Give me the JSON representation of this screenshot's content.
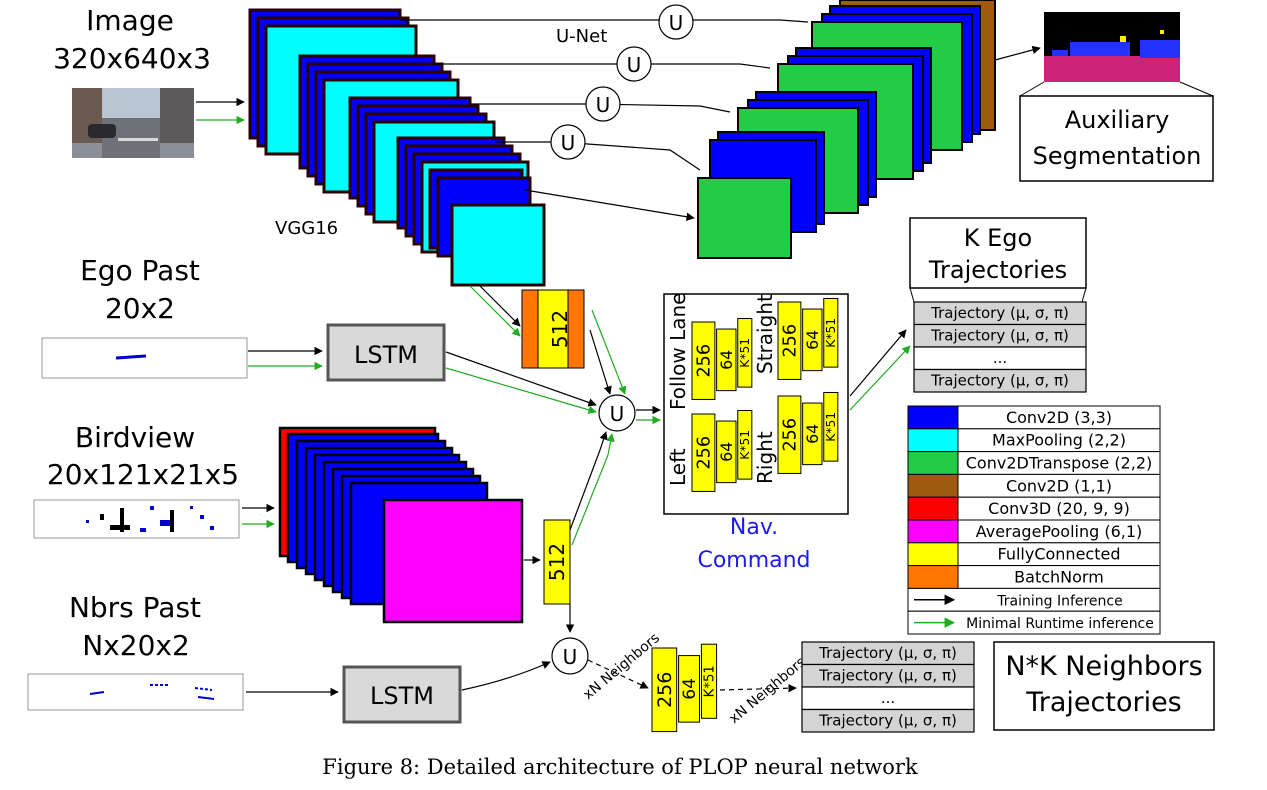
{
  "inputs": {
    "image": {
      "title": "Image",
      "dims": "320x640x3"
    },
    "ego_past": {
      "title": "Ego Past",
      "dims": "20x2"
    },
    "birdview": {
      "title": "Birdview",
      "dims": "20x121x21x5"
    },
    "nbrs_past": {
      "title": "Nbrs Past",
      "dims": "Nx20x2"
    }
  },
  "labels": {
    "vgg16": "VGG16",
    "unet": "U-Net",
    "u": "U",
    "lstm": "LSTM",
    "auxiliary": "Auxiliary",
    "segmentation": "Segmentation",
    "nav": "Nav.",
    "command": "Command",
    "xn_neighbors": "xN Neighbors"
  },
  "fc": {
    "bn512": "512",
    "fc256": "256",
    "fc64": "64",
    "fck51": "K*51",
    "fc512b": "512"
  },
  "nav_commands": {
    "follow": "Follow Lane",
    "straight": "Straight",
    "left": "Left",
    "right": "Right"
  },
  "ego_output": {
    "title_line1": "K Ego",
    "title_line2": "Trajectories",
    "rows": [
      "Trajectory (μ, σ, π)",
      "Trajectory (μ, σ, π)",
      "...",
      "Trajectory (μ, σ, π)"
    ]
  },
  "nbr_output": {
    "title_line1": "N*K Neighbors",
    "title_line2": "Trajectories",
    "rows": [
      "Trajectory (μ, σ, π)",
      "Trajectory (μ, σ, π)",
      "...",
      "Trajectory (μ, σ, π)"
    ]
  },
  "legend": [
    {
      "label": "Conv2D (3,3)",
      "color": "#0000ff"
    },
    {
      "label": "MaxPooling (2,2)",
      "color": "#00ffff"
    },
    {
      "label": "Conv2DTranspose (2,2)",
      "color": "#22cc44"
    },
    {
      "label": "Conv2D (1,1)",
      "color": "#a05a10"
    },
    {
      "label": "Conv3D (20, 9, 9)",
      "color": "#ff0000"
    },
    {
      "label": "AveragePooling (6,1)",
      "color": "#ff00ff"
    },
    {
      "label": "FullyConnected",
      "color": "#ffff00"
    },
    {
      "label": "BatchNorm",
      "color": "#ff7700"
    }
  ],
  "legend_arrows": {
    "training": "Training Inference",
    "minimal": "Minimal Runtime inference"
  },
  "caption": "Figure 8: Detailed architecture of PLOP neural network"
}
